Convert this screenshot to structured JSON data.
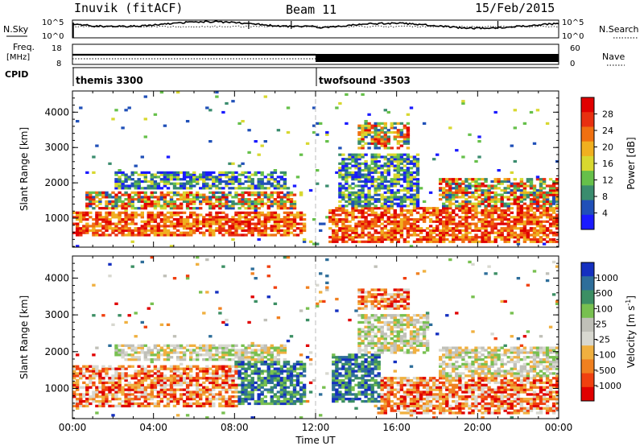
{
  "header": {
    "station": "Inuvik (fitACF)",
    "beam": "Beam 11",
    "date": "15/Feb/2015"
  },
  "strip_labels": {
    "nsky": "N.Sky",
    "nsky_ticks": [
      "10^5",
      "10^0"
    ],
    "nsearch": "N.Search",
    "nsearch_ticks": [
      "10^5",
      "10^0"
    ],
    "freq_top": "Freq.",
    "freq_unit": "[MHz]",
    "freq_ticks": [
      "18",
      "8"
    ],
    "nave": "Nave",
    "nave_ticks": [
      "60",
      "0"
    ],
    "cpid": "CPID"
  },
  "cpid_blocks": [
    {
      "label": "themis 3300",
      "start": 0,
      "end": 12
    },
    {
      "label": "twofsound -3503",
      "start": 12,
      "end": 24
    }
  ],
  "colors": {
    "power": [
      "#1a1aff",
      "#2050b8",
      "#3a8c6e",
      "#66c04a",
      "#d8d830",
      "#f0b020",
      "#f07010",
      "#e83010",
      "#e00000"
    ],
    "velocity": [
      "#1530c0",
      "#2e6e9a",
      "#3c8f64",
      "#78c050",
      "#c0c0b8",
      "#d8d8d0",
      "#f0b040",
      "#f08020",
      "#f04010",
      "#e00000"
    ]
  },
  "chart_data": [
    {
      "type": "heatmap",
      "title": "",
      "xlabel": "Time UT",
      "ylabel": "Slant Range [km]",
      "xlim": [
        0,
        24
      ],
      "ylim": [
        180,
        4600
      ],
      "x_ticks": [
        "00:00",
        "04:00",
        "08:00",
        "12:00",
        "16:00",
        "20:00",
        "00:00"
      ],
      "y_ticks": [
        1000,
        2000,
        3000,
        4000
      ],
      "colorbar": {
        "label": "Power [dB]",
        "ticks": [
          4,
          8,
          12,
          16,
          20,
          24,
          28
        ],
        "range": [
          0,
          32
        ]
      },
      "regions": [
        {
          "t0": 0.0,
          "t1": 11.4,
          "r0": 450,
          "r1": 1150,
          "level": "high"
        },
        {
          "t0": 0.5,
          "t1": 11.0,
          "r0": 1200,
          "r1": 1700,
          "level": "mixed"
        },
        {
          "t0": 2.0,
          "t1": 10.5,
          "r0": 1800,
          "r1": 2300,
          "level": "low"
        },
        {
          "t0": 12.6,
          "t1": 24.0,
          "r0": 300,
          "r1": 1300,
          "level": "high"
        },
        {
          "t0": 13.0,
          "t1": 17.0,
          "r0": 1300,
          "r1": 2800,
          "level": "low"
        },
        {
          "t0": 14.0,
          "t1": 16.5,
          "r0": 2900,
          "r1": 3700,
          "level": "mixed"
        },
        {
          "t0": 18.0,
          "t1": 24.0,
          "r0": 1300,
          "r1": 2100,
          "level": "mixed"
        }
      ]
    },
    {
      "type": "heatmap",
      "title": "",
      "xlabel": "Time UT",
      "ylabel": "Slant Range [km]",
      "xlim": [
        0,
        24
      ],
      "ylim": [
        180,
        4600
      ],
      "x_ticks": [
        "00:00",
        "04:00",
        "08:00",
        "12:00",
        "16:00",
        "20:00",
        "00:00"
      ],
      "y_ticks": [
        1000,
        2000,
        3000,
        4000
      ],
      "colorbar": {
        "label": "Velocity [m s",
        "label_sup": "-1",
        "ticks": [
          "1000",
          "500",
          "100",
          "25",
          "-25",
          "-100",
          "-500",
          "-1000"
        ]
      },
      "regions": [
        {
          "t0": 0.0,
          "t1": 8.0,
          "r0": 450,
          "r1": 1600,
          "level": "neg"
        },
        {
          "t0": 8.0,
          "t1": 11.4,
          "r0": 500,
          "r1": 1700,
          "level": "pos"
        },
        {
          "t0": 2.0,
          "t1": 10.5,
          "r0": 1700,
          "r1": 2200,
          "level": "zero"
        },
        {
          "t0": 12.8,
          "t1": 15.2,
          "r0": 600,
          "r1": 1900,
          "level": "pos"
        },
        {
          "t0": 15.2,
          "t1": 24.0,
          "r0": 300,
          "r1": 1300,
          "level": "neg"
        },
        {
          "t0": 14.0,
          "t1": 17.5,
          "r0": 1900,
          "r1": 3000,
          "level": "zero"
        },
        {
          "t0": 14.0,
          "t1": 16.5,
          "r0": 3100,
          "r1": 3700,
          "level": "neg"
        },
        {
          "t0": 18.0,
          "t1": 24.0,
          "r0": 1200,
          "r1": 2100,
          "level": "zero"
        }
      ]
    }
  ]
}
